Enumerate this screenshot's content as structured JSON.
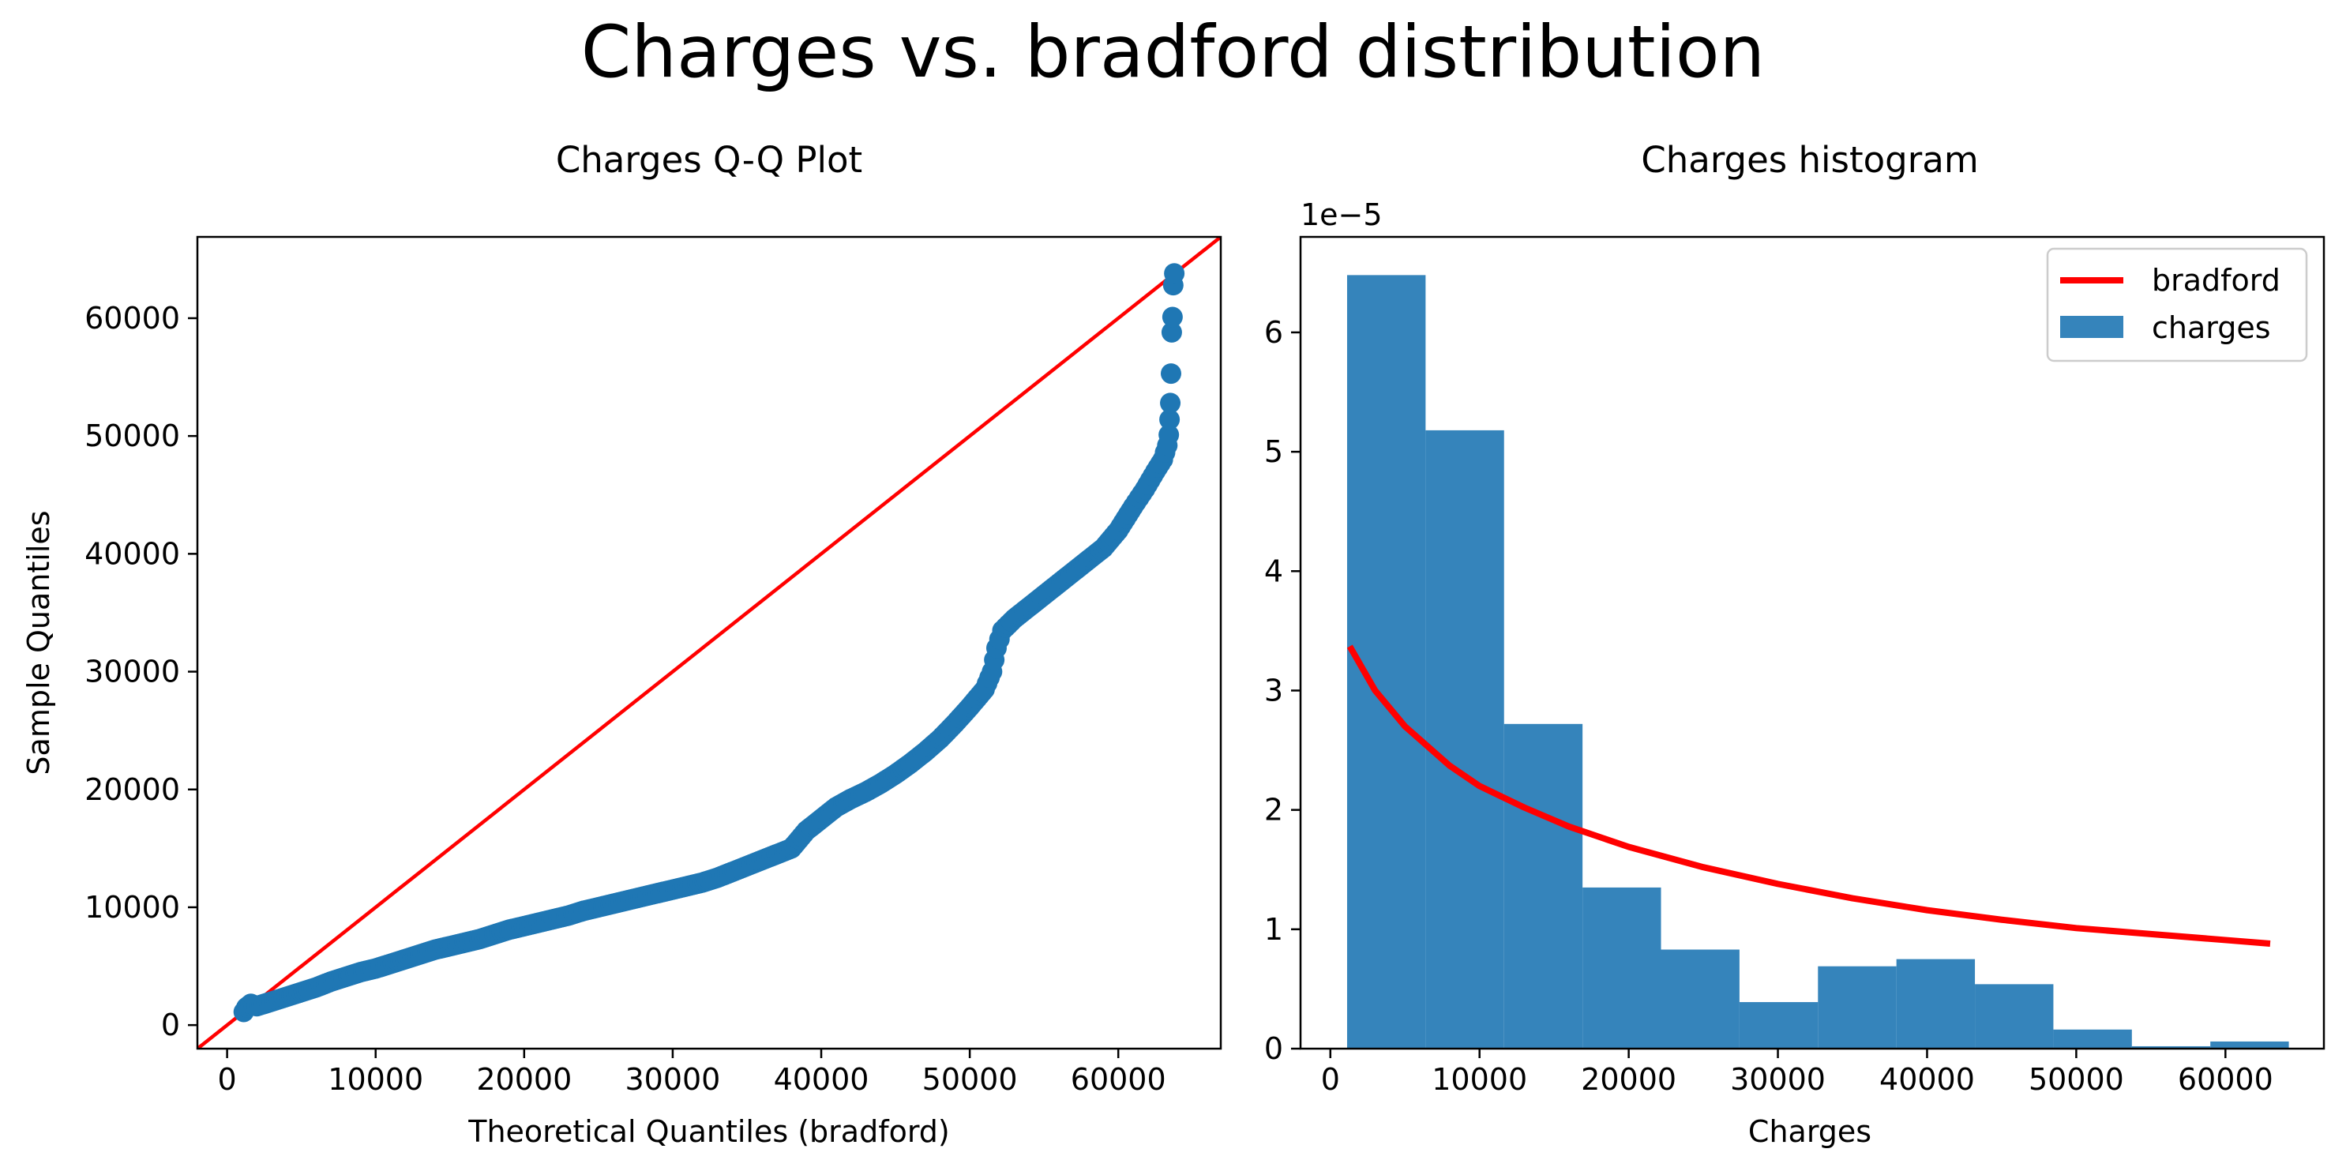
{
  "figure": {
    "title": "Charges vs. bradford distribution"
  },
  "chart_data": [
    {
      "type": "scatter",
      "title": "Charges Q-Q Plot",
      "xlabel": "Theoretical Quantiles (bradford)",
      "ylabel": "Sample Quantiles",
      "xlim": [
        -2000,
        66900
      ],
      "ylim": [
        -2000,
        66900
      ],
      "xticks": [
        0,
        10000,
        20000,
        30000,
        40000,
        50000,
        60000
      ],
      "yticks": [
        0,
        10000,
        20000,
        30000,
        40000,
        50000,
        60000
      ],
      "grid": false,
      "reference_line": {
        "points": [
          [
            -2000,
            -2000
          ],
          [
            66900,
            66900
          ]
        ],
        "color": "#ff0000"
      },
      "series": [
        {
          "color": "#1f77b4",
          "points": [
            [
              1120,
              1120
            ],
            [
              1300,
              1500
            ],
            [
              1600,
              1800
            ],
            [
              2000,
              1600
            ],
            [
              2500,
              1800
            ],
            [
              3000,
              2000
            ],
            [
              4000,
              2400
            ],
            [
              5000,
              2800
            ],
            [
              6000,
              3200
            ],
            [
              7000,
              3700
            ],
            [
              8000,
              4100
            ],
            [
              9000,
              4500
            ],
            [
              10000,
              4800
            ],
            [
              11000,
              5200
            ],
            [
              12000,
              5600
            ],
            [
              13000,
              6000
            ],
            [
              14000,
              6400
            ],
            [
              15000,
              6700
            ],
            [
              16000,
              7000
            ],
            [
              17000,
              7300
            ],
            [
              18000,
              7700
            ],
            [
              19000,
              8100
            ],
            [
              20000,
              8400
            ],
            [
              21000,
              8700
            ],
            [
              22000,
              9000
            ],
            [
              23000,
              9300
            ],
            [
              24000,
              9700
            ],
            [
              25000,
              10000
            ],
            [
              26000,
              10300
            ],
            [
              27000,
              10600
            ],
            [
              28000,
              10900
            ],
            [
              29000,
              11200
            ],
            [
              30000,
              11500
            ],
            [
              31000,
              11800
            ],
            [
              32000,
              12100
            ],
            [
              33000,
              12500
            ],
            [
              34000,
              13000
            ],
            [
              35000,
              13500
            ],
            [
              36000,
              14000
            ],
            [
              37000,
              14500
            ],
            [
              38000,
              15000
            ],
            [
              39000,
              16500
            ],
            [
              40000,
              17500
            ],
            [
              41000,
              18500
            ],
            [
              42000,
              19200
            ],
            [
              43000,
              19800
            ],
            [
              44000,
              20500
            ],
            [
              45000,
              21300
            ],
            [
              46000,
              22200
            ],
            [
              47000,
              23200
            ],
            [
              48000,
              24300
            ],
            [
              49000,
              25600
            ],
            [
              50000,
              27000
            ],
            [
              51000,
              28500
            ],
            [
              51500,
              30000
            ],
            [
              51800,
              32000
            ],
            [
              52200,
              33500
            ],
            [
              53000,
              34500
            ],
            [
              54000,
              35500
            ],
            [
              55000,
              36500
            ],
            [
              56000,
              37500
            ],
            [
              57000,
              38500
            ],
            [
              58000,
              39500
            ],
            [
              59000,
              40500
            ],
            [
              60000,
              42000
            ],
            [
              61000,
              44000
            ],
            [
              61800,
              45500
            ],
            [
              62500,
              47000
            ],
            [
              63000,
              48000
            ],
            [
              63300,
              49200
            ],
            [
              63400,
              50100
            ],
            [
              63450,
              51400
            ],
            [
              63500,
              52800
            ],
            [
              63550,
              55300
            ],
            [
              63600,
              58800
            ],
            [
              63650,
              60100
            ],
            [
              63700,
              62800
            ],
            [
              63770,
              63800
            ]
          ]
        }
      ]
    },
    {
      "type": "bar",
      "title": "Charges histogram",
      "xlabel": "Charges",
      "ylabel": "",
      "y_scale_label": "1e−5",
      "xlim": [
        -2000,
        66600
      ],
      "ylim": [
        0,
        6.8
      ],
      "xticks": [
        0,
        10000,
        20000,
        30000,
        40000,
        50000,
        60000
      ],
      "yticks": [
        0,
        1,
        2,
        3,
        4,
        5,
        6
      ],
      "grid": false,
      "legend": {
        "position": "top-right",
        "entries": [
          "bradford",
          "charges"
        ]
      },
      "bins": [
        {
          "start": 1122,
          "end": 6383,
          "value": 6.48
        },
        {
          "start": 6383,
          "end": 11643,
          "value": 5.18
        },
        {
          "start": 11643,
          "end": 16904,
          "value": 2.72
        },
        {
          "start": 16904,
          "end": 22164,
          "value": 1.35
        },
        {
          "start": 22164,
          "end": 27425,
          "value": 0.83
        },
        {
          "start": 27425,
          "end": 32686,
          "value": 0.39
        },
        {
          "start": 32686,
          "end": 37946,
          "value": 0.69
        },
        {
          "start": 37946,
          "end": 43207,
          "value": 0.75
        },
        {
          "start": 43207,
          "end": 48467,
          "value": 0.54
        },
        {
          "start": 48467,
          "end": 53728,
          "value": 0.16
        },
        {
          "start": 53728,
          "end": 58988,
          "value": 0.02
        },
        {
          "start": 58988,
          "end": 64249,
          "value": 0.06
        }
      ],
      "series": [
        {
          "name": "charges",
          "color": "#3584bb"
        },
        {
          "name": "bradford",
          "color": "#ff0000",
          "points": [
            [
              1300,
              3.37
            ],
            [
              3000,
              3.0
            ],
            [
              5000,
              2.7
            ],
            [
              8000,
              2.37
            ],
            [
              10000,
              2.2
            ],
            [
              13000,
              2.02
            ],
            [
              16000,
              1.86
            ],
            [
              20000,
              1.69
            ],
            [
              25000,
              1.52
            ],
            [
              30000,
              1.38
            ],
            [
              35000,
              1.26
            ],
            [
              40000,
              1.16
            ],
            [
              45000,
              1.08
            ],
            [
              50000,
              1.01
            ],
            [
              55000,
              0.96
            ],
            [
              60000,
              0.91
            ],
            [
              63000,
              0.88
            ]
          ]
        }
      ]
    }
  ]
}
